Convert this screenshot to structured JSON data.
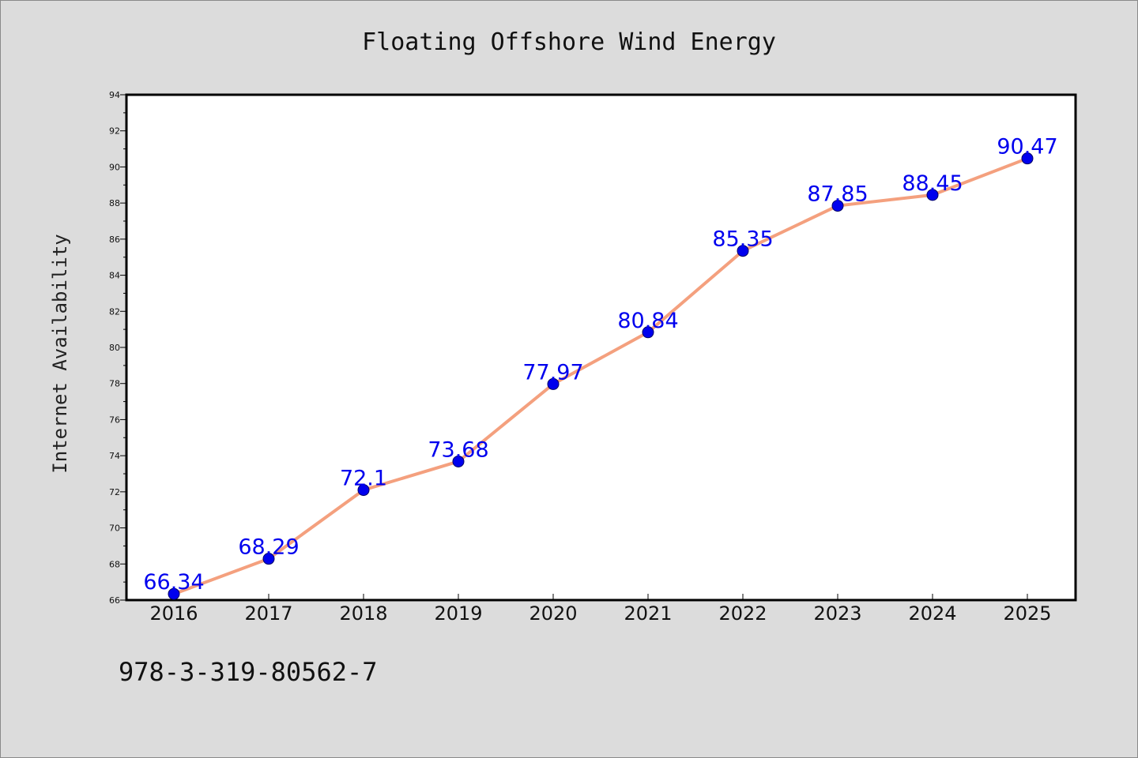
{
  "chart_data": {
    "type": "line",
    "title": "Floating Offshore Wind Energy",
    "xlabel": "",
    "ylabel": "Internet Availability",
    "categories": [
      "2016",
      "2017",
      "2018",
      "2019",
      "2020",
      "2021",
      "2022",
      "2023",
      "2024",
      "2025"
    ],
    "series": [
      {
        "values": [
          66.34,
          68.29,
          72.1,
          73.68,
          77.97,
          80.84,
          85.35,
          87.85,
          88.45,
          90.47
        ],
        "labels": [
          "66.34",
          "68.29",
          "72.1",
          "73.68",
          "77.97",
          "80.84",
          "85.35",
          "87.85",
          "88.45",
          "90.47"
        ]
      }
    ],
    "ylim": [
      66,
      94
    ],
    "yticks": [
      "66",
      "68",
      "70",
      "72",
      "74",
      "76",
      "78",
      "80",
      "82",
      "84",
      "86",
      "88",
      "90",
      "92",
      "94"
    ],
    "grid": false,
    "legend": "none",
    "colors": {
      "line": "#f4a07e",
      "marker": "#0000ee",
      "data_label": "#0000ee",
      "plot_background": "#ffffff",
      "figure_background": "#dcdcdc"
    }
  },
  "footnote": "978-3-319-80562-7"
}
